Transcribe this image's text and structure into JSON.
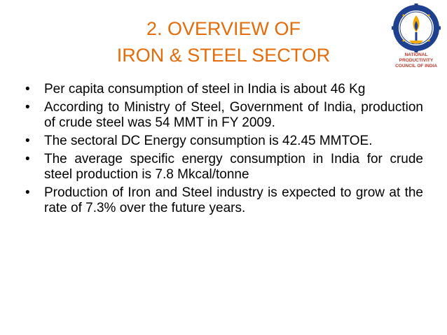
{
  "slide": {
    "title_line1": "2. OVERVIEW OF",
    "title_line2": "IRON & STEEL SECTOR",
    "logo_caption_line1": "NATIONAL PRODUCTIVITY",
    "logo_caption_line2": "COUNCIL OF INDIA",
    "bullet_char": "•",
    "bullets": [
      "Per capita consumption of steel in India is about 46 Kg",
      "According to Ministry of Steel, Government of India, production of crude steel was 54 MMT in FY 2009.",
      "The sectoral DC Energy consumption is 42.45 MMTOE.",
      "The average specific energy consumption in India for crude steel production is 7.8 Mkcal/tonne",
      "Production of Iron and Steel industry is expected to grow at the rate of 7.3% over the future years."
    ]
  },
  "colors": {
    "title": "#e46c0a",
    "logo_ring": "#1f3f8f",
    "logo_accent": "#f2a900",
    "logo_caption": "#c0392b"
  }
}
